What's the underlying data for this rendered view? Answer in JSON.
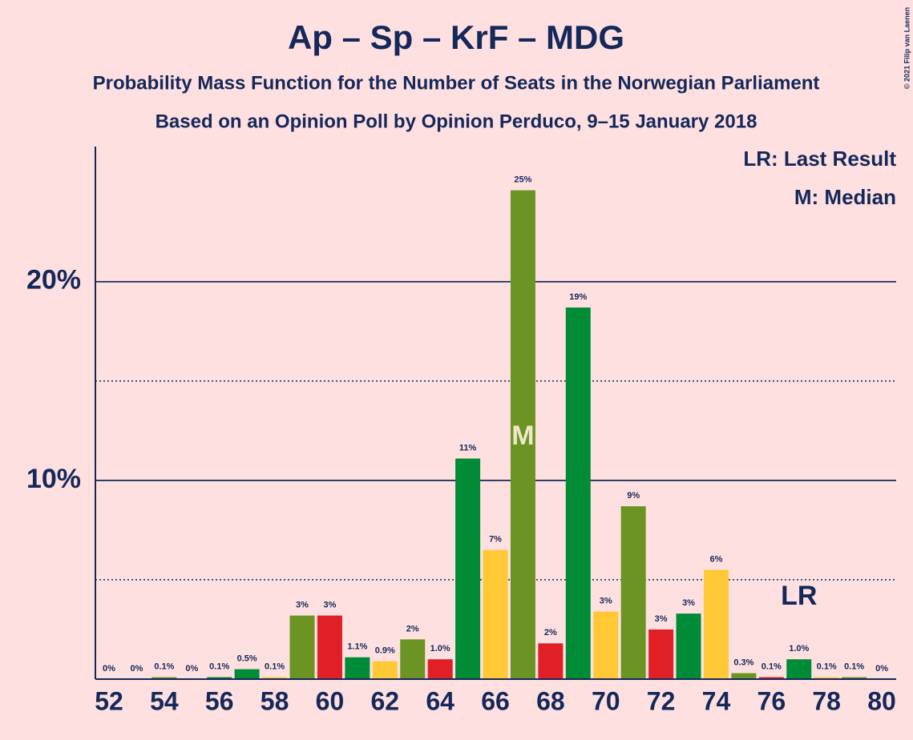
{
  "chart_data": {
    "type": "bar",
    "title": "Ap – Sp – KrF – MDG",
    "subtitle": "Probability Mass Function for the Number of Seats in the Norwegian Parliament",
    "subtitle2": "Based on an Opinion Poll by Opinion Perduco, 9–15 January 2018",
    "copyright": "© 2021 Filip van Laenen",
    "legend_lr": "LR: Last Result",
    "legend_m": "M: Median",
    "median": {
      "label": "M",
      "category_index": 15
    },
    "last_result": {
      "label": "LR",
      "category_index": 25
    },
    "categories": [
      52,
      null,
      54,
      null,
      56,
      null,
      58,
      null,
      60,
      null,
      62,
      null,
      64,
      null,
      66,
      null,
      68,
      null,
      70,
      null,
      72,
      null,
      74,
      null,
      76,
      null,
      78,
      null,
      80
    ],
    "values": [
      0,
      0,
      0.1,
      0,
      0.1,
      0.5,
      0.1,
      3.2,
      3.2,
      1.1,
      0.9,
      2.0,
      1.0,
      11.1,
      6.5,
      24.6,
      1.8,
      18.7,
      3.4,
      8.7,
      2.5,
      3.3,
      5.5,
      0.3,
      0.1,
      1.0,
      0.1,
      0.1,
      0
    ],
    "value_labels": [
      "0%",
      "0%",
      "0.1%",
      "0%",
      "0.1%",
      "0.5%",
      "0.1%",
      "3%",
      "3%",
      "1.1%",
      "0.9%",
      "2%",
      "1.0%",
      "11%",
      "7%",
      "25%",
      "2%",
      "19%",
      "3%",
      "9%",
      "3%",
      "3%",
      "6%",
      "0.3%",
      "0.1%",
      "1.0%",
      "0.1%",
      "0.1%",
      "0%"
    ],
    "colors": [
      "#008c36",
      "#ffc936",
      "#6b9424",
      "#e01f26",
      "#008c36",
      "#008c36",
      "#ffc936",
      "#6b9424",
      "#e01f26",
      "#008c36",
      "#ffc936",
      "#6b9424",
      "#e01f26",
      "#008c36",
      "#ffc936",
      "#6b9424",
      "#e01f26",
      "#008c36",
      "#ffc936",
      "#6b9424",
      "#e01f26",
      "#008c36",
      "#ffc936",
      "#6b9424",
      "#e01f26",
      "#008c36",
      "#ffc936",
      "#6b9424",
      "#e01f26"
    ],
    "ylim": [
      0,
      26.8
    ],
    "yticks": [
      {
        "value": 10,
        "label": "10%"
      },
      {
        "value": 20,
        "label": "20%"
      }
    ],
    "minor_grid": [
      5,
      15
    ],
    "grid": true
  }
}
